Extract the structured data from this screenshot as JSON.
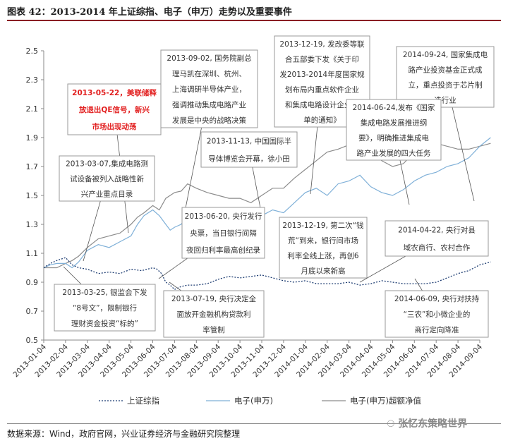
{
  "title": "图表 42：2013-2014 年上证综指、电子（申万）走势以及重要事件",
  "source": "数据来源：Wind，政府官网，兴业证券经济与金融研究院整理",
  "watermark": "张忆东策略世界",
  "chart_data": {
    "type": "line",
    "yticks": [
      "2.5",
      "2.3",
      "2.1",
      "1.9",
      "1.7",
      "1.5",
      "1.3",
      "1.1",
      "0.9",
      "0.7",
      "0.5"
    ],
    "ylim": [
      0.5,
      2.5
    ],
    "xticks": [
      "2013-01-04",
      "2013-02-04",
      "2013-03-04",
      "2013-04-04",
      "2013-05-04",
      "2013-06-04",
      "2013-07-04",
      "2013-08-04",
      "2013-09-04",
      "2013-10-04",
      "2013-11-04",
      "2013-12-04",
      "2014-01-04",
      "2014-02-04",
      "2014-03-04",
      "2014-04-04",
      "2014-05-04",
      "2014-06-04",
      "2014-07-04",
      "2014-08-04",
      "2014-09-04"
    ],
    "series": [
      {
        "name": "上证综指",
        "color": "#1f3e73",
        "style": "dotted",
        "x": [
          0,
          0.3,
          0.6,
          1,
          1.3,
          1.6,
          2,
          2.5,
          3,
          3.5,
          4,
          4.5,
          5,
          5.2,
          5.4,
          5.6,
          5.8,
          6,
          6.3,
          6.6,
          7,
          7.5,
          8,
          8.5,
          9,
          9.5,
          10,
          10.5,
          11,
          11.5,
          12,
          12.5,
          13,
          13.5,
          14,
          14.5,
          15,
          15.5,
          16,
          16.5,
          17,
          17.5,
          18,
          18.5,
          19,
          19.5,
          20,
          20.5
        ],
        "values": [
          1.0,
          1.03,
          1.05,
          1.07,
          1.02,
          1.0,
          0.99,
          0.96,
          0.97,
          0.96,
          0.99,
          0.98,
          1.0,
          0.99,
          0.96,
          0.9,
          0.88,
          0.85,
          0.87,
          0.88,
          0.88,
          0.89,
          0.92,
          0.94,
          0.93,
          0.94,
          0.95,
          0.93,
          0.91,
          0.9,
          0.91,
          0.89,
          0.89,
          0.89,
          0.9,
          0.88,
          0.89,
          0.91,
          0.9,
          0.89,
          0.89,
          0.89,
          0.9,
          0.93,
          0.96,
          0.98,
          1.02,
          1.04
        ]
      },
      {
        "name": "电子(申万)",
        "color": "#7fb0d8",
        "style": "solid",
        "x": [
          0,
          0.3,
          0.6,
          1,
          1.3,
          1.6,
          2,
          2.5,
          3,
          3.5,
          4,
          4.3,
          4.6,
          5,
          5.3,
          5.6,
          5.8,
          6,
          6.3,
          6.6,
          7,
          7.5,
          8,
          8.5,
          9,
          9.5,
          10,
          10.5,
          11,
          11.5,
          12,
          12.5,
          13,
          13.5,
          14,
          14.5,
          15,
          15.5,
          16,
          16.5,
          17,
          17.5,
          18,
          18.5,
          19,
          19.5,
          20,
          20.5
        ],
        "values": [
          1.0,
          1.02,
          1.03,
          1.03,
          1.0,
          1.04,
          1.12,
          1.16,
          1.14,
          1.18,
          1.22,
          1.3,
          1.36,
          1.4,
          1.36,
          1.3,
          1.26,
          1.28,
          1.3,
          1.36,
          1.34,
          1.32,
          1.3,
          1.3,
          1.34,
          1.32,
          1.36,
          1.4,
          1.38,
          1.45,
          1.52,
          1.55,
          1.5,
          1.58,
          1.6,
          1.64,
          1.56,
          1.52,
          1.5,
          1.54,
          1.6,
          1.64,
          1.66,
          1.7,
          1.72,
          1.76,
          1.84,
          1.9
        ]
      },
      {
        "name": "电子(申万)超额净值",
        "color": "#8c8c8c",
        "style": "solid",
        "x": [
          0,
          0.3,
          0.6,
          1,
          1.3,
          1.6,
          2,
          2.5,
          3,
          3.5,
          4,
          4.3,
          4.6,
          5,
          5.3,
          5.6,
          5.8,
          6,
          6.3,
          6.6,
          7,
          7.5,
          8,
          8.5,
          9,
          9.5,
          10,
          10.5,
          11,
          11.5,
          12,
          12.5,
          13,
          13.5,
          14,
          14.5,
          15,
          15.5,
          16,
          16.5,
          17,
          17.5,
          18,
          18.5,
          19,
          19.5,
          20,
          20.5
        ],
        "values": [
          1.0,
          1.0,
          1.0,
          1.03,
          1.05,
          1.08,
          1.14,
          1.2,
          1.22,
          1.24,
          1.3,
          1.35,
          1.38,
          1.43,
          1.4,
          1.48,
          1.5,
          1.52,
          1.53,
          1.58,
          1.55,
          1.52,
          1.5,
          1.48,
          1.48,
          1.45,
          1.5,
          1.55,
          1.55,
          1.62,
          1.68,
          1.74,
          1.8,
          1.82,
          1.85,
          1.9,
          1.8,
          1.74,
          1.7,
          1.72,
          1.8,
          1.86,
          1.86,
          1.84,
          1.82,
          1.82,
          1.84,
          1.86
        ]
      }
    ],
    "annotations": [
      {
        "text": [
          "2013-09-02, 国务院副总",
          "理马凯在深圳、杭州、",
          "上海调研半导体产业，",
          "强调推动集成电路产业",
          "发展是中央的战略决策"
        ],
        "color": "#333",
        "bold": false
      },
      {
        "text": [
          "2013-12-19, 发改委等联",
          "合五部委下发《关于印",
          "发2013-2014年度国家规",
          "划布局内重点软件企业",
          "和集成电路设计企业名",
          "单的通知》"
        ],
        "color": "#333",
        "bold": false
      },
      {
        "text": [
          "2014-09-24, 国家集成电",
          "路产业投资基金正式成",
          "立，重点投资于芯片制",
          "造行业"
        ],
        "color": "#333",
        "bold": false
      },
      {
        "text": [
          "2013-05-22，美联储释",
          "放退出QE信号，新兴",
          "市场出现动荡"
        ],
        "color": "#e21f1f",
        "bold": true
      },
      {
        "text": [
          "2014-06-24,发布《国家",
          "集成电路发展推进纲",
          "要》，明确推进集成电",
          "路产业发展的四大任务"
        ],
        "color": "#333",
        "bold": false
      },
      {
        "text": [
          "2013-03-07,集成电路测",
          "试设备被列入战略性新",
          "兴产业重点目录"
        ],
        "color": "#333",
        "bold": false
      },
      {
        "text": [
          "2013-11-13, 中国国际半",
          "导体博览会开幕，徐小田"
        ],
        "color": "#333",
        "bold": false
      },
      {
        "text": [
          "2013-06-20, 央行发行",
          "央票，当日银行间隔",
          "夜回归利率最高创纪录"
        ],
        "color": "#333",
        "bold": false
      },
      {
        "text": [
          "2013-12-19, 第二次“钱",
          "荒”到来，银行间市场",
          "利率全线上涨，再创6",
          "月底以来新高"
        ],
        "color": "#333",
        "bold": false
      },
      {
        "text": [
          "2014-04-22, 央行对县",
          "域农商行、农村合作"
        ],
        "color": "#333",
        "bold": false
      },
      {
        "text": [
          "2013-03-25, 银监会下发",
          "“8号文”，限制银行",
          "理财资金投资“标的”"
        ],
        "color": "#333",
        "bold": false
      },
      {
        "text": [
          "2013-07-19, 央行决定全",
          "面放开金融机构贷款利",
          "率管制"
        ],
        "color": "#333",
        "bold": false
      },
      {
        "text": [
          "2014-06-09, 央行对扶持",
          "“三农”和小微企业的",
          "商行定向降准"
        ],
        "color": "#333",
        "bold": false
      }
    ]
  }
}
